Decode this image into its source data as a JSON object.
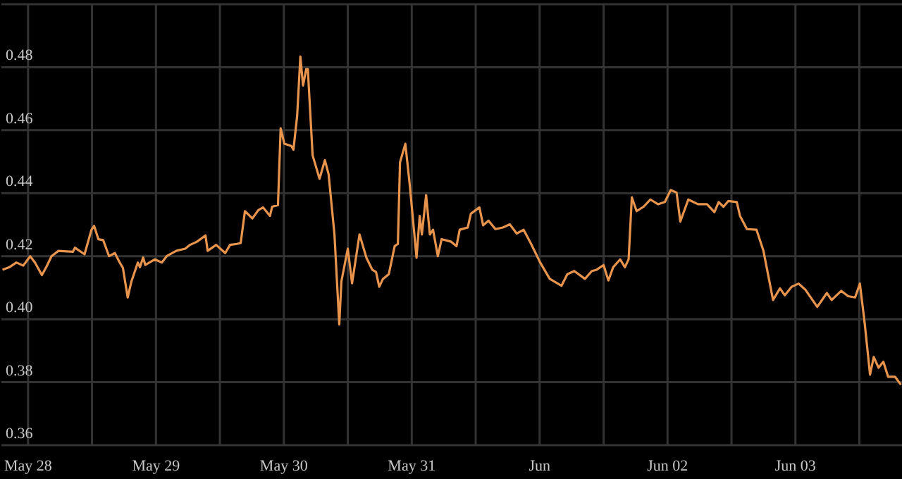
{
  "chart_data": {
    "type": "line",
    "color": "#e8944c",
    "grid": true,
    "xlim": [
      "--05-27T19:00",
      "--06-03T20:00"
    ],
    "xticks": [
      {
        "value": "--05-28",
        "label": "May 28"
      },
      {
        "value": "--05-28T12:00",
        "label": null
      },
      {
        "value": "--05-29",
        "label": "May 29"
      },
      {
        "value": "--05-29T12:00",
        "label": null
      },
      {
        "value": "--05-30",
        "label": "May 30"
      },
      {
        "value": "--05-30T12:00",
        "label": null
      },
      {
        "value": "--05-31",
        "label": "May 31"
      },
      {
        "value": "--05-31T12:00",
        "label": null
      },
      {
        "value": "--06-01",
        "label": "Jun"
      },
      {
        "value": "--06-01T12:00",
        "label": null
      },
      {
        "value": "--06-02",
        "label": "Jun 02"
      },
      {
        "value": "--06-02T12:00",
        "label": null
      },
      {
        "value": "--06-03",
        "label": "Jun 03"
      },
      {
        "value": "--06-03T12:00",
        "label": null
      }
    ],
    "ylim": [
      0.36,
      0.5
    ],
    "yticks": [
      {
        "value": 0.36,
        "label": "0.36"
      },
      {
        "value": 0.38,
        "label": "0.38"
      },
      {
        "value": 0.4,
        "label": "0.40"
      },
      {
        "value": 0.42,
        "label": "0.42"
      },
      {
        "value": 0.44,
        "label": "0.44"
      },
      {
        "value": 0.46,
        "label": "0.46"
      },
      {
        "value": 0.48,
        "label": "0.48"
      }
    ],
    "x": [
      "--05-27T19:12",
      "--05-27T20:30",
      "--05-27T21:48",
      "--05-27T23:06",
      "--05-28T00:24",
      "--05-28T01:18",
      "--05-28T02:36",
      "--05-28T03:30",
      "--05-28T04:24",
      "--05-28T05:42",
      "--05-28T08:24",
      "--05-28T08:48",
      "--05-28T10:36",
      "--05-28T11:54",
      "--05-28T12:24",
      "--05-28T13:12",
      "--05-28T14:06",
      "--05-28T15:12",
      "--05-28T16:18",
      "--05-28T17:12",
      "--05-28T17:48",
      "--05-28T18:42",
      "--05-28T19:24",
      "--05-28T20:36",
      "--05-28T21:00",
      "--05-28T21:36",
      "--05-28T22:00",
      "--05-28T23:48",
      "--05-29T01:06",
      "--05-29T02:00",
      "--05-29T03:48",
      "--05-29T05:30",
      "--05-29T06:24",
      "--05-29T07:42",
      "--05-29T09:18",
      "--05-29T09:42",
      "--05-29T11:18",
      "--05-29T13:00",
      "--05-29T13:54",
      "--05-29T15:12",
      "--05-29T15:54",
      "--05-29T16:42",
      "--05-29T18:06",
      "--05-29T19:12",
      "--05-29T20:06",
      "--05-29T21:24",
      "--05-29T21:48",
      "--05-29T22:54",
      "--05-29T23:24",
      "--05-30T00:06",
      "--05-30T01:24",
      "--05-30T01:48",
      "--05-30T02:30",
      "--05-30T03:06",
      "--05-30T03:36",
      "--05-30T04:12",
      "--05-30T04:30",
      "--05-30T05:24",
      "--05-30T06:42",
      "--05-30T07:42",
      "--05-30T08:24",
      "--05-30T09:30",
      "--05-30T10:24",
      "--05-30T10:48",
      "--05-30T12:00",
      "--05-30T12:48",
      "--05-30T14:12",
      "--05-30T15:30",
      "--05-30T16:36",
      "--05-30T17:18",
      "--05-30T17:54",
      "--05-30T18:36",
      "--05-30T19:42",
      "--05-30T20:48",
      "--05-30T21:24",
      "--05-30T21:48",
      "--05-30T22:48",
      "--05-30T23:36",
      "--05-31T00:54",
      "--05-31T01:30",
      "--05-31T01:54",
      "--05-31T02:42",
      "--05-31T03:24",
      "--05-31T04:00",
      "--05-31T04:54",
      "--05-31T05:36",
      "--05-31T07:24",
      "--05-31T08:24",
      "--05-31T09:00",
      "--05-31T10:30",
      "--05-31T11:06",
      "--05-31T12:42",
      "--05-31T13:24",
      "--05-31T14:24",
      "--05-31T15:42",
      "--05-31T17:06",
      "--05-31T18:24",
      "--05-31T19:42",
      "--05-31T21:00",
      "--05-31T22:24",
      "--06-01T00:06",
      "--06-01T01:54",
      "--06-01T04:06",
      "--06-01T05:12",
      "--06-01T06:30",
      "--06-01T08:30",
      "--06-01T09:48",
      "--06-01T10:42",
      "--06-01T12:00",
      "--06-01T12:54",
      "--06-01T13:48",
      "--06-01T15:06",
      "--06-01T16:00",
      "--06-01T16:42",
      "--06-01T17:18",
      "--06-01T18:12",
      "--06-01T19:30",
      "--06-01T20:48",
      "--06-01T22:12",
      "--06-01T23:30",
      "--06-02T00:36",
      "--06-02T01:42",
      "--06-02T02:24",
      "--06-02T03:54",
      "--06-02T05:42",
      "--06-02T07:24",
      "--06-02T08:48",
      "--06-02T09:36",
      "--06-02T10:30",
      "--06-02T11:24",
      "--06-02T13:00",
      "--06-02T13:36",
      "--06-02T14:54",
      "--06-02T16:42",
      "--06-02T18:00",
      "--06-02T19:48",
      "--06-02T21:06",
      "--06-02T22:00",
      "--06-02T23:18",
      "--06-03T00:36",
      "--06-03T01:54",
      "--06-03T04:06",
      "--06-03T05:54",
      "--06-03T06:48",
      "--06-03T08:36",
      "--06-03T09:54",
      "--06-03T11:12",
      "--06-03T12:06",
      "--06-03T13:00",
      "--06-03T14:00",
      "--06-03T14:42",
      "--06-03T15:36",
      "--06-03T16:30",
      "--06-03T17:24",
      "--06-03T18:42",
      "--06-03T19:48"
    ],
    "values": [
      0.4157,
      0.4165,
      0.418,
      0.417,
      0.42,
      0.418,
      0.414,
      0.4168,
      0.42,
      0.4217,
      0.4214,
      0.4227,
      0.4206,
      0.4284,
      0.4296,
      0.4254,
      0.4251,
      0.42,
      0.421,
      0.418,
      0.4163,
      0.4069,
      0.412,
      0.418,
      0.4165,
      0.4196,
      0.4172,
      0.419,
      0.418,
      0.42,
      0.4217,
      0.4224,
      0.4236,
      0.4246,
      0.4266,
      0.4217,
      0.4236,
      0.421,
      0.4236,
      0.4239,
      0.4242,
      0.4343,
      0.432,
      0.4346,
      0.4355,
      0.4328,
      0.4357,
      0.4362,
      0.4606,
      0.4557,
      0.455,
      0.4538,
      0.4646,
      0.4834,
      0.4742,
      0.4794,
      0.4794,
      0.452,
      0.4446,
      0.4505,
      0.446,
      0.4269,
      0.3983,
      0.412,
      0.4224,
      0.4114,
      0.4269,
      0.4195,
      0.4157,
      0.415,
      0.4103,
      0.4128,
      0.4143,
      0.4232,
      0.4239,
      0.4498,
      0.4557,
      0.4431,
      0.4195,
      0.4328,
      0.4269,
      0.4394,
      0.4269,
      0.4284,
      0.42,
      0.4254,
      0.4246,
      0.4232,
      0.4284,
      0.4291,
      0.4335,
      0.4355,
      0.4298,
      0.4313,
      0.4286,
      0.4291,
      0.4301,
      0.4272,
      0.4284,
      0.4239,
      0.418,
      0.4128,
      0.4106,
      0.4143,
      0.4153,
      0.4128,
      0.4153,
      0.4157,
      0.4172,
      0.4123,
      0.4165,
      0.419,
      0.4165,
      0.419,
      0.4387,
      0.4343,
      0.4357,
      0.438,
      0.4365,
      0.4372,
      0.441,
      0.4402,
      0.431,
      0.438,
      0.4365,
      0.4365,
      0.434,
      0.4372,
      0.4357,
      0.4375,
      0.4372,
      0.4328,
      0.4286,
      0.4284,
      0.4217,
      0.4061,
      0.4098,
      0.4076,
      0.4103,
      0.4113,
      0.4093,
      0.4039,
      0.4083,
      0.4061,
      0.409,
      0.4073,
      0.4069,
      0.4113,
      0.3987,
      0.3824,
      0.388,
      0.3846,
      0.3865,
      0.3817,
      0.3817,
      0.3792
    ]
  }
}
